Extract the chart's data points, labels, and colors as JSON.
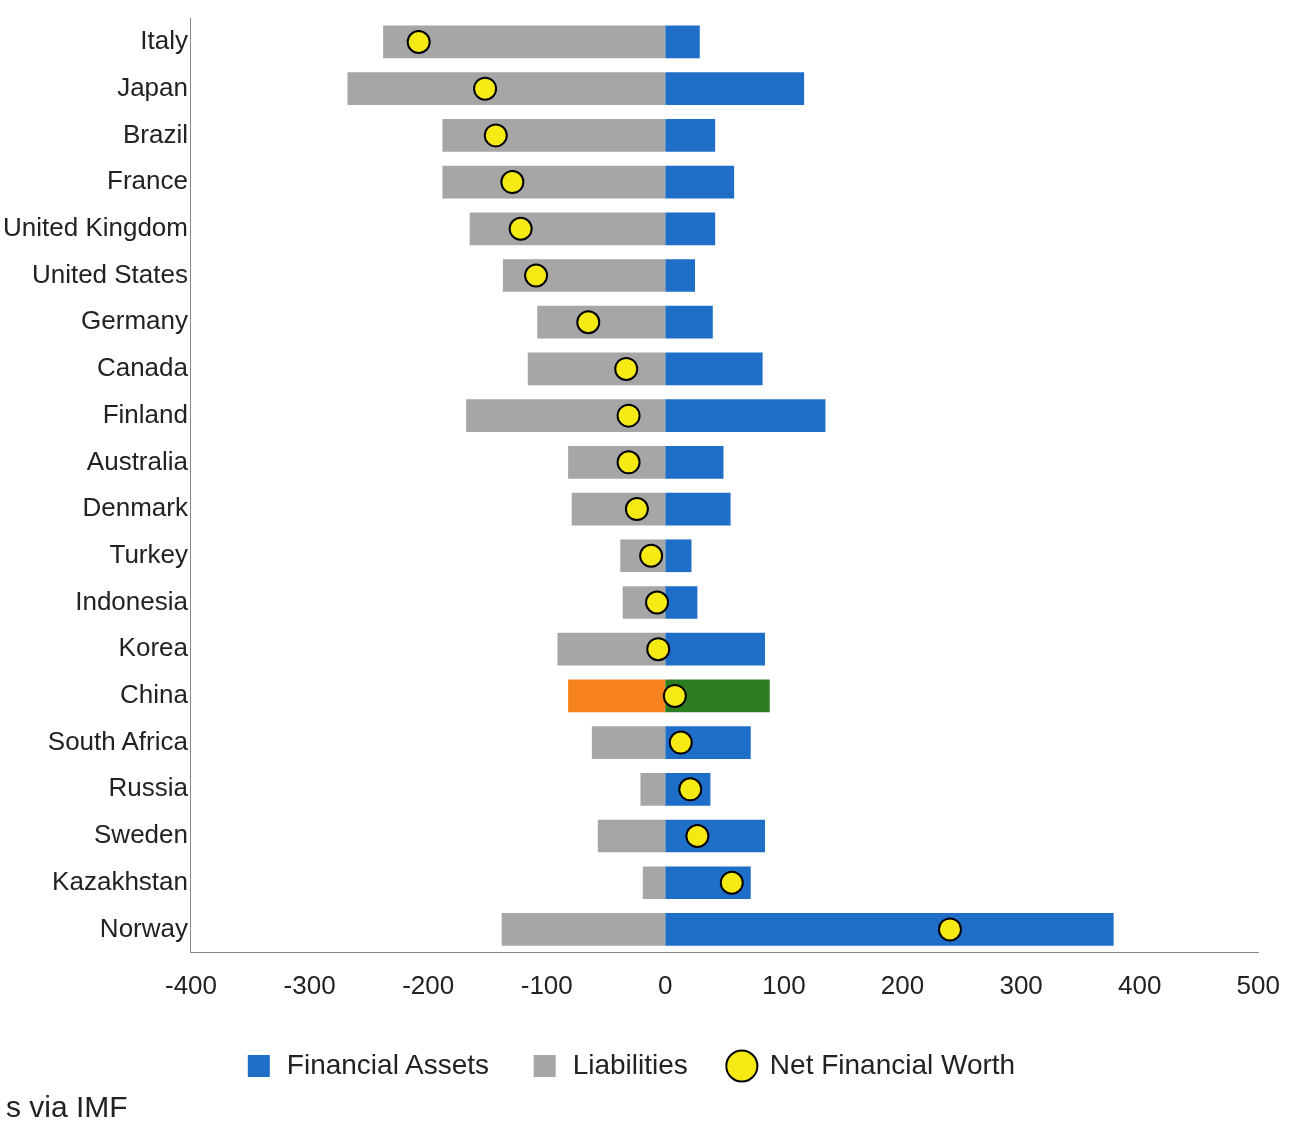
{
  "chart_data": {
    "type": "bar",
    "orientation": "horizontal",
    "stacked": true,
    "categories": [
      "Italy",
      "Japan",
      "Brazil",
      "France",
      "United Kingdom",
      "United States",
      "Germany",
      "Canada",
      "Finland",
      "Australia",
      "Denmark",
      "Turkey",
      "Indonesia",
      "Korea",
      "China",
      "South Africa",
      "Russia",
      "Sweden",
      "Kazakhstan",
      "Norway"
    ],
    "series": [
      {
        "name": "Financial Assets",
        "color": "#1f6fc8",
        "colors": [
          "#1f6fc8",
          "#1f6fc8",
          "#1f6fc8",
          "#1f6fc8",
          "#1f6fc8",
          "#1f6fc8",
          "#1f6fc8",
          "#1f6fc8",
          "#1f6fc8",
          "#1f6fc8",
          "#1f6fc8",
          "#1f6fc8",
          "#1f6fc8",
          "#1f6fc8",
          "#2e7d23",
          "#1f6fc8",
          "#1f6fc8",
          "#1f6fc8",
          "#1f6fc8",
          "#1f6fc8"
        ],
        "values": [
          29,
          117,
          42,
          58,
          42,
          25,
          40,
          82,
          135,
          49,
          55,
          22,
          27,
          84,
          88,
          72,
          38,
          84,
          72,
          378
        ]
      },
      {
        "name": "Liabilities",
        "color": "#a6a6a6",
        "colors": [
          "#a6a6a6",
          "#a6a6a6",
          "#a6a6a6",
          "#a6a6a6",
          "#a6a6a6",
          "#a6a6a6",
          "#a6a6a6",
          "#a6a6a6",
          "#a6a6a6",
          "#a6a6a6",
          "#a6a6a6",
          "#a6a6a6",
          "#a6a6a6",
          "#a6a6a6",
          "#f7821e",
          "#a6a6a6",
          "#a6a6a6",
          "#a6a6a6",
          "#a6a6a6",
          "#a6a6a6"
        ],
        "values": [
          -238,
          -268,
          -188,
          -188,
          -165,
          -137,
          -108,
          -116,
          -168,
          -82,
          -79,
          -38,
          -36,
          -91,
          -82,
          -62,
          -21,
          -57,
          -19,
          -138
        ]
      },
      {
        "name": "Net Financial Worth",
        "type": "scatter",
        "color": "#f5ea14",
        "values": [
          -208,
          -152,
          -143,
          -129,
          -122,
          -109,
          -65,
          -33,
          -31,
          -31,
          -24,
          -12,
          -7,
          -6,
          8,
          13,
          21,
          27,
          56,
          240
        ]
      }
    ],
    "xlim": [
      -400,
      500
    ],
    "xticks": [
      -400,
      -300,
      -200,
      -100,
      0,
      100,
      200,
      300,
      400,
      500
    ],
    "grid": false,
    "legend": "bottom",
    "marker": "circle",
    "annotations": [
      "s via IMF"
    ]
  }
}
